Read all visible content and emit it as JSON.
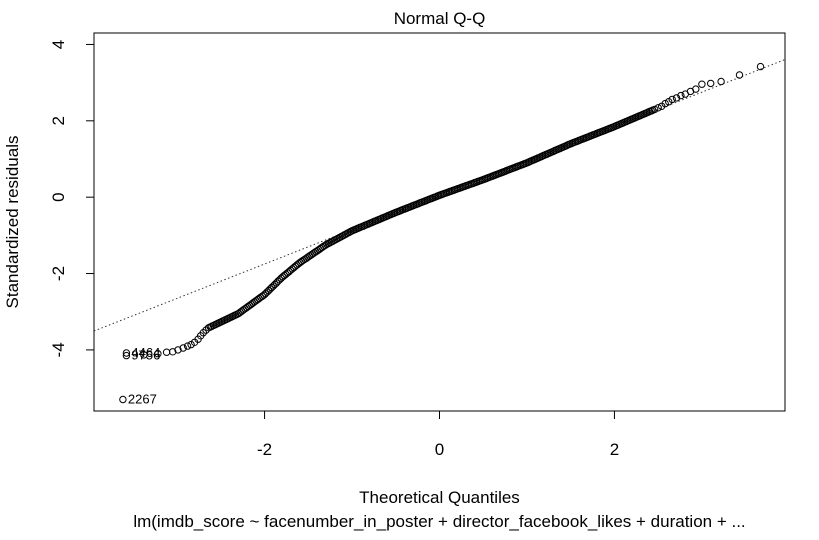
{
  "chart_data": {
    "type": "scatter",
    "title": "Normal Q-Q",
    "xlabel": "Theoretical Quantiles",
    "ylabel": "Standardized residuals",
    "subtitle": "lm(imdb_score ~ facenumber_in_poster + director_facebook_likes + duration + ...",
    "xlim": [
      -3.95,
      3.95
    ],
    "ylim": [
      -5.6,
      4.3
    ],
    "xticks": [
      -2,
      0,
      2
    ],
    "yticks": [
      -4,
      -2,
      0,
      2,
      4
    ],
    "xtick_labels": [
      "-2",
      "0",
      "2"
    ],
    "ytick_labels": [
      "-4",
      "-2",
      "0",
      "2",
      "4"
    ],
    "grid": false,
    "reference_line": {
      "slope": 0.9,
      "intercept": 0.05,
      "style": "dotted"
    },
    "labeled_points": [
      {
        "label": "4464",
        "x": -3.58,
        "y": -4.08
      },
      {
        "label": "9756",
        "x": -3.58,
        "y": -4.15
      },
      {
        "label": "2267",
        "x": -3.62,
        "y": -5.3
      }
    ],
    "points": [
      [
        -3.58,
        -4.08
      ],
      [
        -3.58,
        -4.15
      ],
      [
        -3.62,
        -5.3
      ],
      [
        -3.38,
        -4.13
      ],
      [
        -3.22,
        -4.1
      ],
      [
        -3.12,
        -4.06
      ],
      [
        -3.05,
        -4.05
      ],
      [
        -2.99,
        -4.0
      ],
      [
        -2.93,
        -3.95
      ],
      [
        -2.88,
        -3.9
      ],
      [
        -2.84,
        -3.86
      ],
      [
        -2.8,
        -3.8
      ],
      [
        -2.76,
        -3.72
      ],
      [
        -2.73,
        -3.63
      ],
      [
        -2.7,
        -3.55
      ],
      [
        -2.67,
        -3.48
      ],
      [
        -2.64,
        -3.42
      ],
      [
        3.67,
        3.42
      ],
      [
        3.43,
        3.2
      ],
      [
        3.22,
        3.03
      ],
      [
        3.1,
        2.98
      ],
      [
        3.0,
        2.96
      ],
      [
        2.93,
        2.83
      ],
      [
        2.87,
        2.77
      ],
      [
        2.81,
        2.7
      ],
      [
        2.76,
        2.66
      ],
      [
        2.71,
        2.6
      ],
      [
        2.66,
        2.56
      ],
      [
        2.62,
        2.5
      ],
      [
        2.58,
        2.45
      ],
      [
        2.54,
        2.38
      ],
      [
        2.5,
        2.34
      ],
      [
        2.46,
        2.3
      ]
    ],
    "dense_curve": [
      [
        -2.62,
        -3.4
      ],
      [
        -2.3,
        -3.05
      ],
      [
        -2.0,
        -2.55
      ],
      [
        -1.8,
        -2.1
      ],
      [
        -1.6,
        -1.72
      ],
      [
        -1.3,
        -1.25
      ],
      [
        -1.0,
        -0.88
      ],
      [
        -0.5,
        -0.4
      ],
      [
        0.0,
        0.05
      ],
      [
        0.5,
        0.46
      ],
      [
        1.0,
        0.9
      ],
      [
        1.5,
        1.4
      ],
      [
        2.0,
        1.85
      ],
      [
        2.44,
        2.28
      ]
    ]
  }
}
